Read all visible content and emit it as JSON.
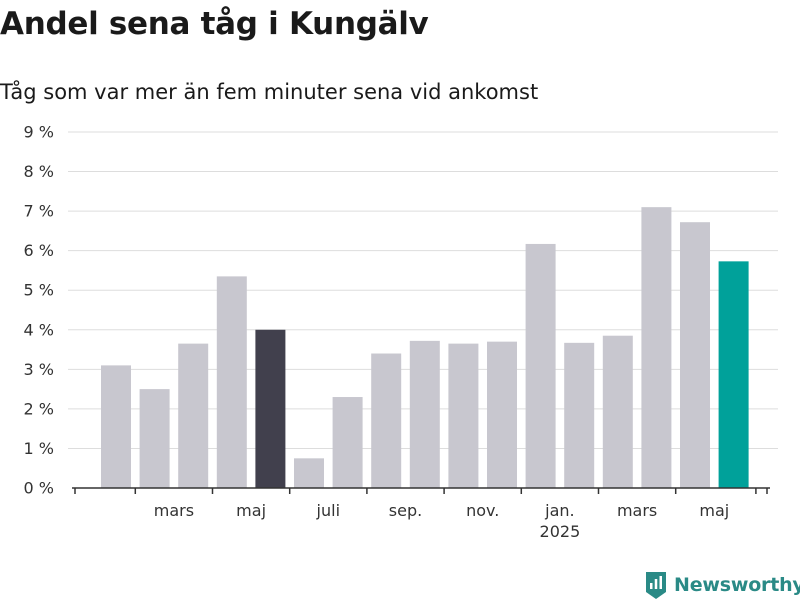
{
  "title": "Andel sena tåg i Kungälv",
  "subtitle": "Tåg som var mer än fem minuter sena vid ankomst",
  "brand": {
    "name": "Newsworthy",
    "icon": "newsworthy-logo-icon",
    "color": "#2a8a86"
  },
  "colors": {
    "default": "#c8c7cf",
    "highlight": "#41404d",
    "latest": "#00a19a",
    "grid": "#dddddd",
    "axis": "#333333"
  },
  "chart_data": {
    "type": "bar",
    "title": "Andel sena tåg i Kungälv",
    "subtitle": "Tåg som var mer än fem minuter sena vid ankomst",
    "xlabel": "",
    "ylabel": "",
    "ylim": [
      0,
      9
    ],
    "y_ticks": [
      "0 %",
      "1 %",
      "2 %",
      "3 %",
      "4 %",
      "5 %",
      "6 %",
      "7 %",
      "8 %",
      "9 %"
    ],
    "x_tick_labels": [
      {
        "label": "mars",
        "at": 1
      },
      {
        "label": "maj",
        "at": 3
      },
      {
        "label": "juli",
        "at": 5
      },
      {
        "label": "sep.",
        "at": 7
      },
      {
        "label": "nov.",
        "at": 9
      },
      {
        "label": "jan.",
        "sub": "2025",
        "at": 11
      },
      {
        "label": "mars",
        "at": 13
      },
      {
        "label": "maj",
        "at": 15
      }
    ],
    "categories": [
      "2024-02",
      "2024-03",
      "2024-04",
      "2024-05",
      "2024-06",
      "2024-07",
      "2024-08",
      "2024-09",
      "2024-10",
      "2024-11",
      "2024-12",
      "2025-01",
      "2025-02",
      "2025-03",
      "2025-04",
      "2025-05",
      "2025-06"
    ],
    "values": [
      3.1,
      2.5,
      3.65,
      5.35,
      4.0,
      0.75,
      2.3,
      3.4,
      3.72,
      3.65,
      3.7,
      6.17,
      3.67,
      3.85,
      7.1,
      6.72,
      5.73
    ],
    "bar_styles": [
      "default",
      "default",
      "default",
      "default",
      "highlight",
      "default",
      "default",
      "default",
      "default",
      "default",
      "default",
      "default",
      "default",
      "default",
      "default",
      "default",
      "latest"
    ],
    "grid": true,
    "legend": "none"
  }
}
